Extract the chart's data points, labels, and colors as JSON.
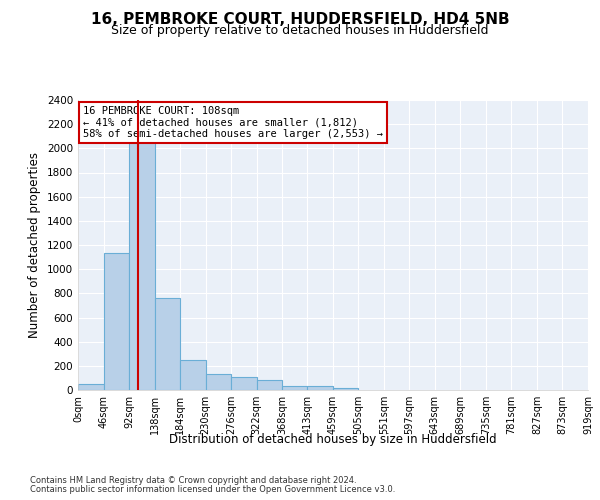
{
  "title": "16, PEMBROKE COURT, HUDDERSFIELD, HD4 5NB",
  "subtitle": "Size of property relative to detached houses in Huddersfield",
  "xlabel": "Distribution of detached houses by size in Huddersfield",
  "ylabel": "Number of detached properties",
  "footnote1": "Contains HM Land Registry data © Crown copyright and database right 2024.",
  "footnote2": "Contains public sector information licensed under the Open Government Licence v3.0.",
  "bin_edges": [
    0,
    46,
    92,
    138,
    184,
    230,
    276,
    322,
    368,
    413,
    459,
    505,
    551,
    597,
    643,
    689,
    735,
    781,
    827,
    873,
    919
  ],
  "bar_heights": [
    50,
    1130,
    2180,
    760,
    250,
    130,
    110,
    80,
    30,
    30,
    20,
    0,
    0,
    0,
    0,
    0,
    0,
    0,
    0,
    0
  ],
  "bar_color": "#b8d0e8",
  "bar_edge_color": "#6aaed6",
  "property_size": 108,
  "red_line_color": "#cc0000",
  "annotation_line1": "16 PEMBROKE COURT: 108sqm",
  "annotation_line2": "← 41% of detached houses are smaller (1,812)",
  "annotation_line3": "58% of semi-detached houses are larger (2,553) →",
  "annotation_box_color": "#ffffff",
  "annotation_box_edge": "#cc0000",
  "ylim": [
    0,
    2400
  ],
  "yticks": [
    0,
    200,
    400,
    600,
    800,
    1000,
    1200,
    1400,
    1600,
    1800,
    2000,
    2200,
    2400
  ],
  "bg_color": "#eaf0f8",
  "grid_color": "#ffffff",
  "title_fontsize": 11,
  "subtitle_fontsize": 9,
  "footnote_fontsize": 6
}
